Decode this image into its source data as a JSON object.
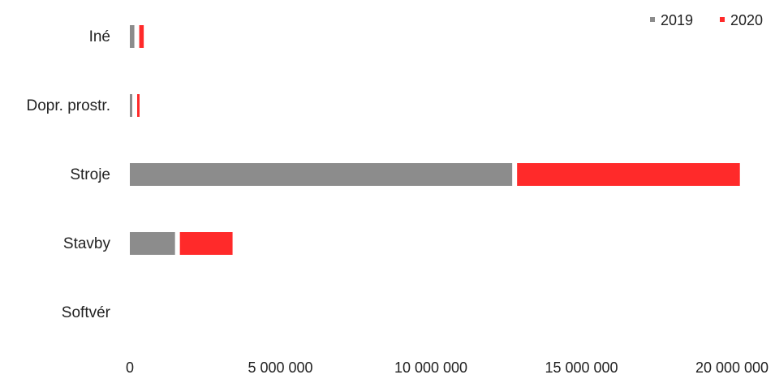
{
  "chart_data": {
    "type": "bar",
    "orientation": "horizontal",
    "stacked": true,
    "categories": [
      "Iné",
      "Dopr. prostr.",
      "Stroje",
      "Stavby",
      "Softvér"
    ],
    "series": [
      {
        "name": "2019",
        "color": "#8c8c8c",
        "values": [
          150000,
          20000,
          12700000,
          1500000,
          0
        ]
      },
      {
        "name": "2020",
        "color": "#ff2a2a",
        "values": [
          150000,
          70000,
          7400000,
          1750000,
          0
        ]
      }
    ],
    "xlim": [
      0,
      20000000
    ],
    "xticks": [
      0,
      5000000,
      10000000,
      15000000,
      20000000
    ],
    "xtick_labels": [
      "0",
      "5 000 000",
      "10 000 000",
      "15 000 000",
      "20 000 000"
    ],
    "title": "",
    "xlabel": "",
    "ylabel": "",
    "grid": false,
    "legend_position": "top-right"
  }
}
